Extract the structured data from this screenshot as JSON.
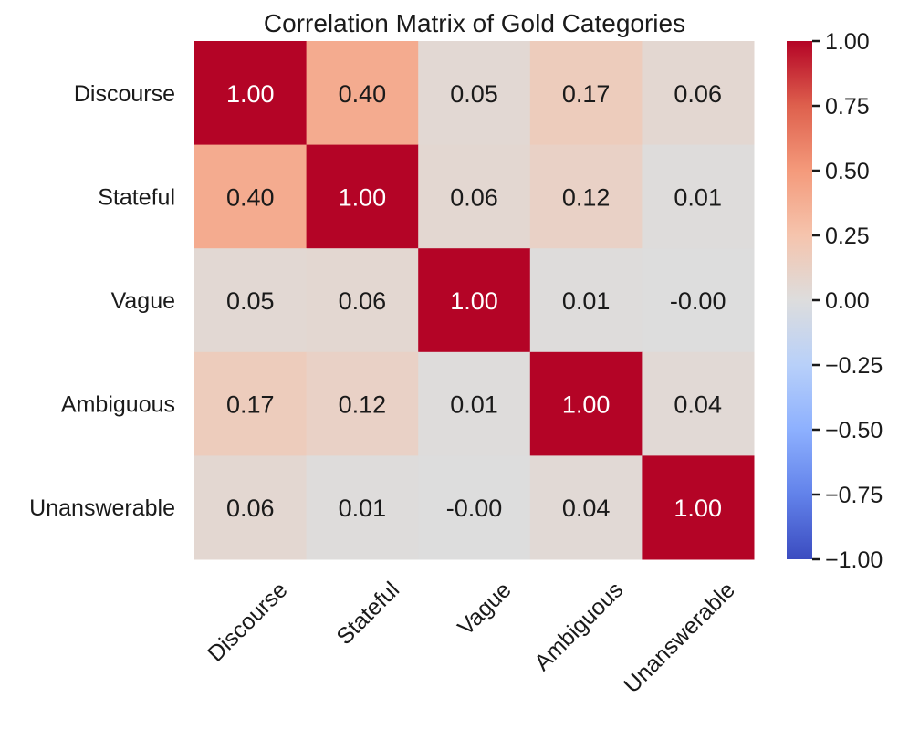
{
  "chart_data": {
    "type": "heatmap",
    "title": "Correlation Matrix of Gold Categories",
    "rows": [
      "Discourse",
      "Stateful",
      "Vague",
      "Ambiguous",
      "Unanswerable"
    ],
    "columns": [
      "Discourse",
      "Stateful",
      "Vague",
      "Ambiguous",
      "Unanswerable"
    ],
    "values": [
      [
        1.0,
        0.4,
        0.05,
        0.17,
        0.06
      ],
      [
        0.4,
        1.0,
        0.06,
        0.12,
        0.01
      ],
      [
        0.05,
        0.06,
        1.0,
        0.01,
        -0.0
      ],
      [
        0.17,
        0.12,
        0.01,
        1.0,
        0.04
      ],
      [
        0.06,
        0.01,
        -0.0,
        0.04,
        1.0
      ]
    ],
    "value_labels": [
      [
        "1.00",
        "0.40",
        "0.05",
        "0.17",
        "0.06"
      ],
      [
        "0.40",
        "1.00",
        "0.06",
        "0.12",
        "0.01"
      ],
      [
        "0.05",
        "0.06",
        "1.00",
        "0.01",
        "-0.00"
      ],
      [
        "0.17",
        "0.12",
        "0.01",
        "1.00",
        "0.04"
      ],
      [
        "0.06",
        "0.01",
        "-0.00",
        "0.04",
        "1.00"
      ]
    ],
    "colormap": "coolwarm",
    "vmin": -1.0,
    "vmax": 1.0,
    "colorbar_ticks": [
      1.0,
      0.75,
      0.5,
      0.25,
      0.0,
      -0.25,
      -0.5,
      -0.75,
      -1.0
    ],
    "colorbar_tick_labels": [
      "1.00",
      "0.75",
      "0.50",
      "0.25",
      "0.00",
      "−0.25",
      "−0.50",
      "−0.75",
      "−1.00"
    ],
    "x_tick_rotation": "45 degrees"
  }
}
